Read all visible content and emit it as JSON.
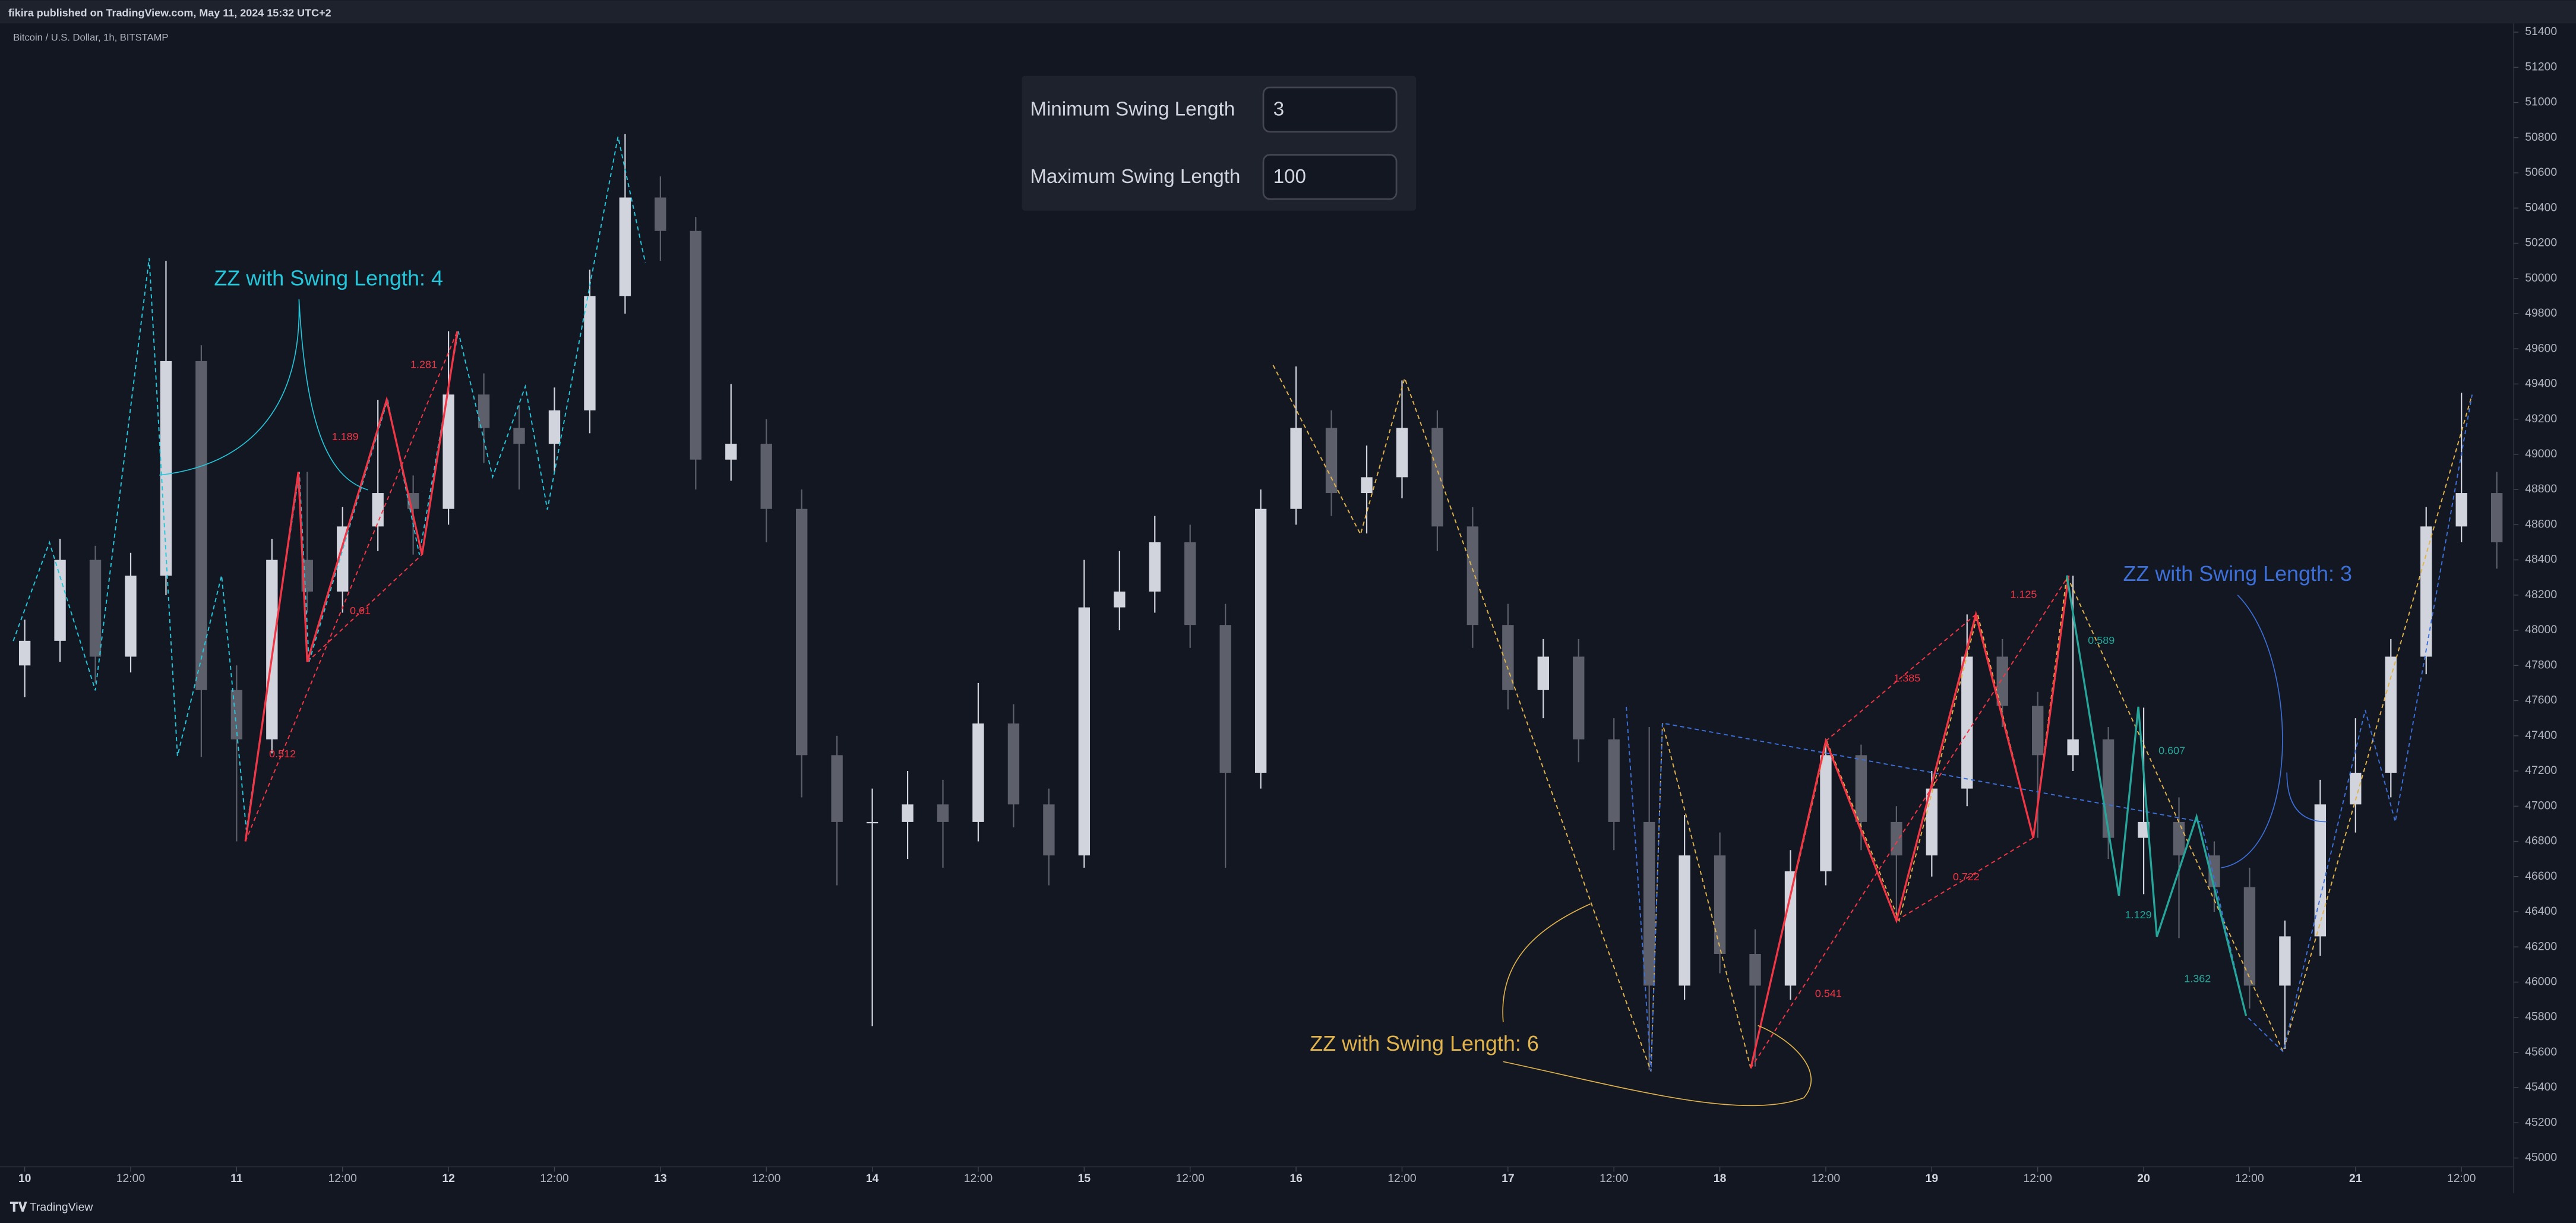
{
  "header": {
    "publisher": "fikira published on TradingView.com, May 11, 2024 15:32 UTC+2",
    "symbol": "Bitcoin / U.S. Dollar, 1h, BITSTAMP"
  },
  "settings_panel": {
    "rows": [
      {
        "label": "Minimum Swing Length",
        "value": "3"
      },
      {
        "label": "Maximum Swing Length",
        "value": "100"
      }
    ]
  },
  "footer": {
    "brand": "TradingView"
  },
  "chart_data": {
    "type": "candlestick",
    "up_color": "#d1d4dc",
    "down_color": "#5d606b",
    "x": [
      0,
      4,
      8,
      12,
      16,
      20,
      24,
      28,
      32,
      36,
      40,
      44,
      48,
      52,
      56,
      60,
      64,
      68,
      72,
      76,
      80,
      84,
      88,
      92,
      96,
      100,
      104,
      108,
      112,
      116,
      120,
      124,
      128,
      132,
      136,
      140,
      144,
      148,
      152,
      156,
      160,
      164,
      168,
      172,
      176,
      180,
      184,
      188,
      192,
      196,
      200,
      204,
      208,
      212,
      216,
      220,
      224,
      228,
      232,
      236,
      240,
      244,
      248,
      252,
      256,
      260,
      264,
      268,
      272,
      276,
      280
    ],
    "open": [
      47800,
      47940,
      48400,
      47850,
      48310,
      49530,
      47660,
      47380,
      48400,
      48220,
      48590,
      48780,
      48690,
      49340,
      49150,
      49060,
      49250,
      49900,
      50460,
      50270,
      48970,
      49060,
      48690,
      47290,
      46910,
      46910,
      47010,
      46910,
      47470,
      47010,
      46720,
      48130,
      48220,
      48500,
      48030,
      47190,
      48690,
      49150,
      48780,
      48870,
      49150,
      48590,
      48030,
      47660,
      47850,
      47380,
      46910,
      45980,
      46720,
      46160,
      45980,
      46630,
      47290,
      46910,
      46720,
      47100,
      47850,
      47570,
      47290,
      47380,
      46820,
      46910,
      46720,
      46540,
      45980,
      46260,
      47010,
      47190,
      47850,
      48590,
      48780
    ],
    "high": [
      48060,
      48520,
      48480,
      48440,
      50100,
      49620,
      47800,
      48520,
      48900,
      48700,
      49310,
      48880,
      49700,
      49460,
      49280,
      49380,
      50050,
      50820,
      50580,
      50350,
      49400,
      49200,
      48800,
      47400,
      47100,
      47200,
      47150,
      47700,
      47580,
      47100,
      48400,
      48450,
      48650,
      48600,
      48150,
      48800,
      49500,
      49250,
      49050,
      49420,
      49250,
      48700,
      48150,
      47950,
      47950,
      47500,
      47450,
      46950,
      46850,
      46300,
      46750,
      47380,
      47350,
      47000,
      47200,
      48090,
      47950,
      47650,
      48310,
      47450,
      47560,
      47050,
      46800,
      46650,
      46350,
      47150,
      47500,
      47950,
      48700,
      49350,
      48900
    ],
    "low": [
      47620,
      47820,
      47700,
      47760,
      48200,
      47280,
      46800,
      47300,
      48100,
      48100,
      48450,
      48430,
      48600,
      48950,
      48800,
      48900,
      49120,
      49800,
      50100,
      48800,
      48850,
      48500,
      47050,
      46550,
      45750,
      46700,
      46650,
      46800,
      46880,
      46550,
      46650,
      48000,
      48100,
      47900,
      46650,
      47100,
      48600,
      48650,
      48550,
      48750,
      48450,
      47900,
      47550,
      47500,
      47250,
      46750,
      45500,
      45900,
      46050,
      45520,
      45900,
      46550,
      46750,
      46350,
      46600,
      47000,
      47450,
      46820,
      47200,
      46700,
      46500,
      46250,
      46400,
      45850,
      45620,
      46150,
      46850,
      47050,
      47750,
      48500,
      48350
    ],
    "close": [
      47940,
      48400,
      47850,
      48310,
      49530,
      47660,
      47380,
      48400,
      48220,
      48590,
      48780,
      48690,
      49340,
      49150,
      49060,
      49250,
      49900,
      50460,
      50270,
      48970,
      49060,
      48690,
      47290,
      46910,
      46910,
      47010,
      46910,
      47470,
      47010,
      46720,
      48130,
      48220,
      48500,
      48030,
      47190,
      48690,
      49150,
      48780,
      48870,
      49150,
      48590,
      48030,
      47660,
      47850,
      47380,
      46910,
      45980,
      46720,
      46160,
      45980,
      46630,
      47290,
      46910,
      46720,
      47100,
      47850,
      47570,
      47290,
      47380,
      46820,
      46910,
      46720,
      46540,
      45980,
      46260,
      47010,
      47190,
      47850,
      48590,
      48780,
      48500
    ],
    "xlim": [
      -2.8,
      281.9
    ],
    "ylim": [
      44950,
      51450
    ],
    "xticks": [
      {
        "value": 0,
        "label": "10"
      },
      {
        "value": 12,
        "label": "12:00"
      },
      {
        "value": 24,
        "label": "11"
      },
      {
        "value": 36,
        "label": "12:00"
      },
      {
        "value": 48,
        "label": "12"
      },
      {
        "value": 60,
        "label": "12:00"
      },
      {
        "value": 72,
        "label": "13"
      },
      {
        "value": 84,
        "label": "12:00"
      },
      {
        "value": 96,
        "label": "14"
      },
      {
        "value": 108,
        "label": "12:00"
      },
      {
        "value": 120,
        "label": "15"
      },
      {
        "value": 132,
        "label": "12:00"
      },
      {
        "value": 144,
        "label": "16"
      },
      {
        "value": 156,
        "label": "12:00"
      },
      {
        "value": 168,
        "label": "17"
      },
      {
        "value": 180,
        "label": "12:00"
      },
      {
        "value": 192,
        "label": "18"
      },
      {
        "value": 204,
        "label": "12:00"
      },
      {
        "value": 216,
        "label": "19"
      },
      {
        "value": 228,
        "label": "12:00"
      },
      {
        "value": 240,
        "label": "20"
      },
      {
        "value": 252,
        "label": "12:00"
      },
      {
        "value": 264,
        "label": "21"
      },
      {
        "value": 276,
        "label": "12:00"
      }
    ],
    "yticks": [
      45000,
      45200,
      45400,
      45600,
      45800,
      46000,
      46200,
      46400,
      46600,
      46800,
      47000,
      47200,
      47400,
      47600,
      47800,
      48000,
      48200,
      48400,
      48600,
      48800,
      49000,
      49200,
      49400,
      49600,
      49800,
      50000,
      50200,
      50400,
      50600,
      50800,
      51000,
      51200,
      51400
    ],
    "zigzags": [
      {
        "color": "#26c6da",
        "dashed": true,
        "x": [
          -1.3,
          2.8,
          8.0,
          14.1,
          17.3,
          22.3,
          25.1,
          31.1,
          32.2,
          41.1,
          44.7,
          49.1,
          53.0,
          56.7,
          59.2,
          67.2,
          70.3
        ],
        "values": [
          47939,
          48500,
          47658,
          50115,
          47285,
          48312,
          46865,
          48900,
          47820,
          49310,
          48430,
          49700,
          48872,
          49386,
          48686,
          50806,
          50087
        ]
      },
      {
        "color": "#e0b34d",
        "dashed": true,
        "x": [
          141.4,
          151.3,
          156.3,
          184.2,
          185.5,
          195.5,
          204.1,
          212.3,
          221.2,
          227.5,
          231.3,
          255.8,
          277.2
        ],
        "values": [
          49507,
          48545,
          49433,
          45492,
          47472,
          45510,
          47370,
          46350,
          48090,
          46820,
          48312,
          45604,
          49339
        ]
      },
      {
        "color": "#3d6fd8",
        "dashed": true,
        "x": [
          181.4,
          184.2,
          185.5,
          246.5,
          251.6,
          255.8,
          265.1,
          268.5,
          277.2
        ],
        "values": [
          47565,
          45492,
          47472,
          46911,
          45809,
          45604,
          47546,
          46911,
          49339
        ]
      },
      {
        "color": "#f23645",
        "dashed": true,
        "x": [
          25,
          49
        ],
        "values": [
          46800,
          49700
        ]
      },
      {
        "color": "#f23645",
        "dashed": true,
        "x": [
          32,
          45
        ],
        "values": [
          47820,
          48430
        ]
      },
      {
        "color": "#f23645",
        "dashed": true,
        "x": [
          195.5,
          231.5
        ],
        "values": [
          45510,
          48310
        ]
      },
      {
        "color": "#f23645",
        "dashed": true,
        "x": [
          204,
          221
        ],
        "values": [
          47370,
          48090
        ]
      },
      {
        "color": "#f23645",
        "dashed": true,
        "x": [
          212,
          227.5
        ],
        "values": [
          46350,
          46820
        ]
      },
      {
        "color": "#f23645",
        "dashed": false,
        "x": [
          25,
          31,
          32,
          41,
          45,
          49
        ],
        "values": [
          46800,
          48900,
          47820,
          49310,
          48430,
          49700
        ]
      },
      {
        "color": "#f23645",
        "dashed": false,
        "x": [
          195.5,
          204,
          212,
          221,
          227.5,
          231.5
        ],
        "values": [
          45510,
          47370,
          46350,
          48090,
          46820,
          48310
        ]
      },
      {
        "color": "#26a69a",
        "dashed": false,
        "x": [
          231.3,
          237.2,
          239.4,
          241.5,
          246.0,
          251.6
        ],
        "values": [
          48312,
          46491,
          47565,
          46258,
          46940,
          45809
        ]
      }
    ],
    "fib_labels": [
      {
        "text": "0.512",
        "x": 29.2,
        "y": 47294,
        "color": "#f23645"
      },
      {
        "text": "1.189",
        "x": 36.3,
        "y": 49097,
        "color": "#f23645"
      },
      {
        "text": "1.281",
        "x": 45.2,
        "y": 49507,
        "color": "#f23645"
      },
      {
        "text": "0.61",
        "x": 38.0,
        "y": 48107,
        "color": "#f23645"
      },
      {
        "text": "1.385",
        "x": 213.2,
        "y": 47724,
        "color": "#f23645"
      },
      {
        "text": "1.125",
        "x": 226.4,
        "y": 48200,
        "color": "#f23645"
      },
      {
        "text": "0.541",
        "x": 204.3,
        "y": 45931,
        "color": "#f23645"
      },
      {
        "text": "0.722",
        "x": 219.9,
        "y": 46594,
        "color": "#f23645"
      },
      {
        "text": "0.589",
        "x": 235.2,
        "y": 47939,
        "color": "#26a69a"
      },
      {
        "text": "0.607",
        "x": 243.2,
        "y": 47313,
        "color": "#26a69a"
      },
      {
        "text": "1.129",
        "x": 239.4,
        "y": 46379,
        "color": "#26a69a"
      },
      {
        "text": "1.362",
        "x": 246.1,
        "y": 46015,
        "color": "#26a69a"
      }
    ],
    "annotations": [
      {
        "text": "ZZ with Swing Length: 4",
        "color": "#26c6da"
      },
      {
        "text": "ZZ with Swing Length: 3",
        "color": "#3d6fd8"
      },
      {
        "text": "ZZ with Swing Length: 6",
        "color": "#e0b34d"
      }
    ]
  }
}
